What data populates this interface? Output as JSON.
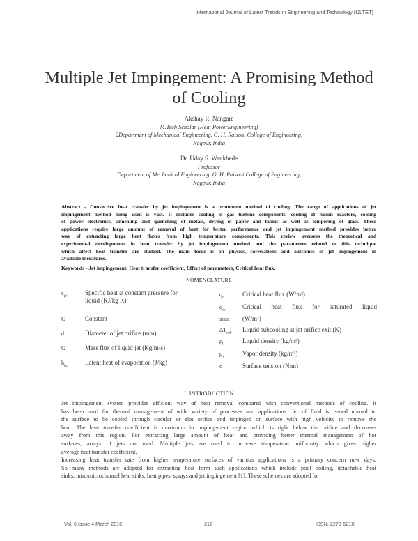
{
  "header": {
    "journal": "International Journal of Latest Trends in Engineering and Technology (IJLTET)"
  },
  "title": {
    "line1": "Multiple Jet Impingement: A Promising Method",
    "line2": "of Cooling"
  },
  "authors": [
    {
      "name": "Akshay R. Nangare",
      "role": "M.Tech Scholar (Heat PowerEngineering)",
      "affil1": "2Department of Mechanical Engineering, G. H. Raisoni College of Engineering,",
      "affil2": "Nagpur, India"
    },
    {
      "name": "Dr. Uday S. Wankhede",
      "role": "Professor",
      "affil1": "Department of Mechanical Engineering, G. H. Raisoni College of Engineering,",
      "affil2": "Nagpur, India"
    }
  ],
  "abstract": [
    "Abstract - Convective heat transfer by jet impingement is a prominent method of cooling. The range of applications of jet",
    "impingement method being used is vast. It includes cooling of gas turbine components, cooling of fusion reactors, cooling",
    "of power electronics, annealing and quenching of metals, drying of paper and fabric as well as tempering of glass. These",
    "applications require large amount of removal of heat for better performance and jet impingement method provides better",
    "way of extracting large heat fluxes from high temperature components. This review oversees the theoretical and",
    "experimental developments in heat transfer by jet impingement method and the parameters related to this technique",
    "which affect heat transfer are studied. The main focus is on physics, correlations and outcomes of jet impingement in",
    "available literatures."
  ],
  "keywords": "Keywords - Jet impingement, Heat transfer coefficient, Effect of parameters, Critical heat flux.",
  "nomenclature": {
    "heading": "NOMENCLATURE",
    "left": [
      {
        "sym": "c",
        "sub": "pl",
        "sup": "",
        "desc": "Specific heat at constant pressure for",
        "desc2": "liquid (KJ/kg K)"
      },
      {
        "sym": "C",
        "sub": "",
        "desc": "Constant"
      },
      {
        "sym": "d",
        "sub": "",
        "desc": "Diameter of jet orifice (mm)"
      },
      {
        "sym": "G",
        "sub": "",
        "desc": "Mass flux of liquid jet (Kg/m²s)"
      },
      {
        "sym": "h",
        "sub": "fg",
        "desc": "Latent heat of evaporation (J/kg)"
      }
    ],
    "right": [
      {
        "sym": "q",
        "sub": "c",
        "desc": "Critical heat flux  (W/m²)"
      },
      {
        "sym": "q",
        "sub": "cs",
        "desc": "Critical heat flux for saturated liquid"
      },
      {
        "sym": "state",
        "sub": "",
        "desc": "(W/m²)"
      },
      {
        "sym": "ΔT",
        "sub": "sub",
        "desc": "Liquid subcooling at jet orifice exit (K)"
      },
      {
        "sym": "ρ",
        "sub": "l",
        "desc": "Liquid density (kg/m³)"
      },
      {
        "sym": "ρ",
        "sub": "v",
        "desc": "Vapor density (kg/m³)"
      },
      {
        "sym": "σ",
        "sub": "",
        "desc": "Surface tension (N/m)"
      }
    ]
  },
  "section": "I.    INTRODUCTION",
  "body": [
    "Jet impingement system provides efficient way of heat removal compared with conventional methods of cooling. It",
    "has been used for thermal management of wide variety of processes and applications. Jet of fluid is issued normal to",
    "the surface to be cooled through circular or slot orifice and impinged on surface with high velocity to remove the",
    "heat. The heat transfer coefficient is maximum in impingement region which is right below the orifice and decreases",
    "away from this region. For extracting large amount of heat and providing better thermal management of hot",
    "surfaces, arrays of jets are used. Multiple jets are used to increase temperature uniformity which gives higher",
    "average heat transfer coefficient.",
    "Increasing heat transfer rate from higher temperature surfaces of various applications is a primary concern now days.",
    "So many methods are adopted for extracting heat form such applications which include pool boiling, detachable heat",
    "sinks, mini/microchannel heat sinks, heat pipes, sprays and jet impingement [1]. These schemes are adopted for"
  ],
  "footer": {
    "volume": "Vol. 6 Issue 4 March 2016",
    "page": "212",
    "issn": "ISSN: 2278-621X"
  }
}
